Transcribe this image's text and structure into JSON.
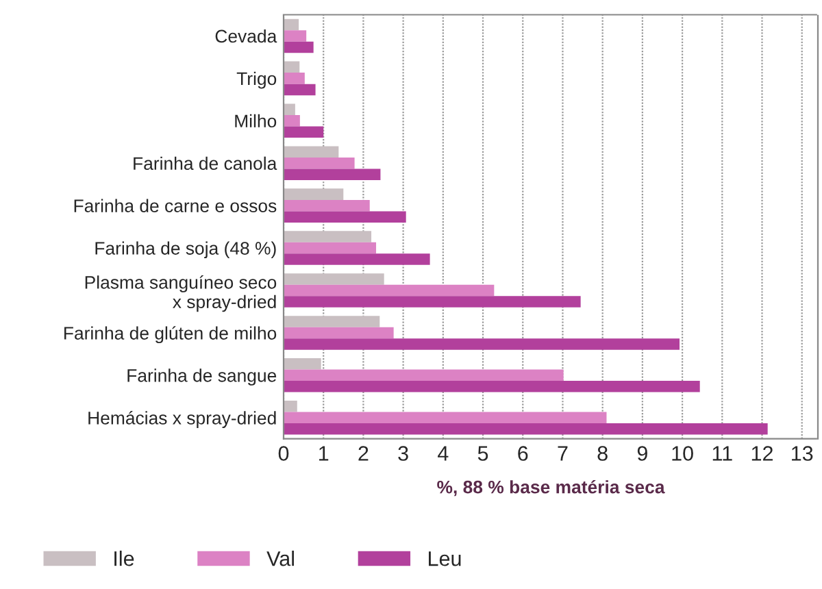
{
  "chart_data": {
    "type": "bar",
    "orientation": "horizontal",
    "xlabel": "%, 88 % base matéria seca",
    "categories": [
      "Cevada",
      "Trigo",
      "Milho",
      "Farinha de canola",
      "Farinha de carne e ossos",
      "Farinha de soja (48 %)",
      "Plasma sanguíneo seco\nx spray-dried",
      "Farinha de glúten de milho",
      "Farinha de sangue",
      "Hemácias x spray-dried"
    ],
    "series": [
      {
        "name": "Ile",
        "color": "#c9bfc2",
        "values": [
          0.38,
          0.4,
          0.29,
          1.38,
          1.5,
          2.2,
          2.52,
          2.41,
          0.94,
          0.34
        ]
      },
      {
        "name": "Val",
        "color": "#dc82c4",
        "values": [
          0.57,
          0.53,
          0.41,
          1.78,
          2.16,
          2.32,
          5.28,
          2.76,
          7.02,
          8.1
        ]
      },
      {
        "name": "Leu",
        "color": "#b2409c",
        "values": [
          0.75,
          0.8,
          1.0,
          2.43,
          3.07,
          3.67,
          7.45,
          9.93,
          10.44,
          12.14
        ]
      }
    ],
    "xlim": [
      0,
      13.4
    ],
    "xticks": [
      0,
      1,
      2,
      3,
      4,
      5,
      6,
      7,
      8,
      9,
      10,
      11,
      12,
      13
    ],
    "grid": "x",
    "legend": "bottom left"
  }
}
